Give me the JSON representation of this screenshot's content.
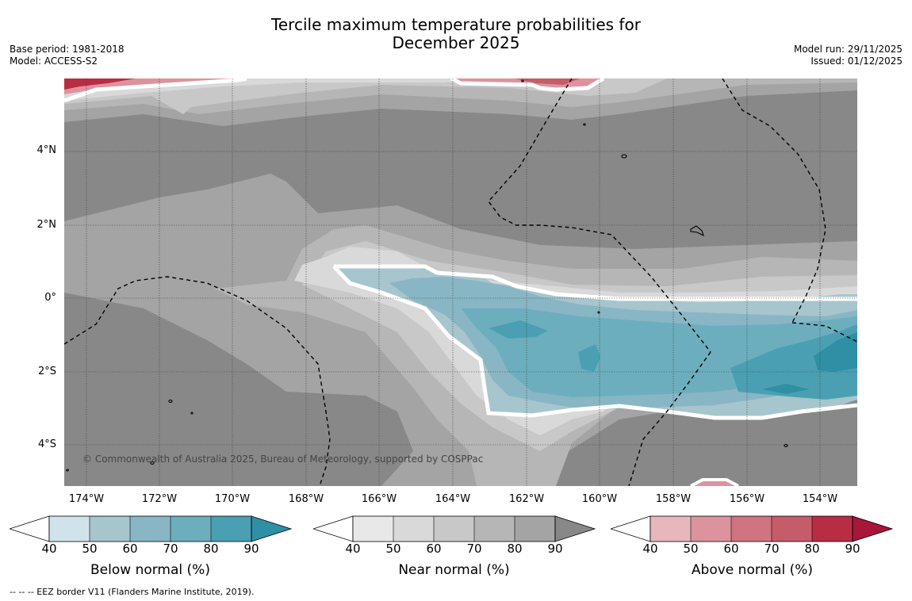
{
  "header": {
    "title_line1": "Tercile maximum temperature probabilities for",
    "title_line2": "December 2025",
    "base_period": "Base period: 1981-2018",
    "model": "Model: ACCESS-S2",
    "model_run": "Model run: 29/11/2025",
    "issued": "Issued: 01/12/2025"
  },
  "map": {
    "copyright": "© Commonwealth of Australia 2025, Bureau of Meteorology, supported by COSPPac",
    "lon_labels": [
      "174°W",
      "172°W",
      "170°W",
      "168°W",
      "166°W",
      "164°W",
      "162°W",
      "160°W",
      "158°W",
      "156°W",
      "154°W"
    ],
    "lat_labels": [
      "4°N",
      "2°N",
      "0°",
      "2°S",
      "4°S"
    ],
    "colors": {
      "near_base": "#888888",
      "near_80": "#a4a4a4",
      "near_70": "#b6b6b6",
      "near_60": "#c8c8c8",
      "near_50": "#d9d9d9",
      "below_50": "#a7c5cc",
      "below_60": "#89b6c4",
      "below_70": "#6caebd",
      "below_80": "#4aa0b2",
      "below_90": "#2f8fa4",
      "above_50": "#dc939d",
      "above_70": "#c55c6a",
      "above_80": "#b82d43"
    }
  },
  "legends": [
    {
      "title": "Below normal (%)",
      "ticks": [
        "40",
        "50",
        "60",
        "70",
        "80",
        "90"
      ],
      "colors": [
        "#ffffff",
        "#cfe4ea",
        "#a7c5cc",
        "#89b6c4",
        "#6caebd",
        "#4aa0b2",
        "#2f8fa4"
      ]
    },
    {
      "title": "Near normal (%)",
      "ticks": [
        "40",
        "50",
        "60",
        "70",
        "80",
        "90"
      ],
      "colors": [
        "#ffffff",
        "#e8e8e8",
        "#d9d9d9",
        "#c8c8c8",
        "#b6b6b6",
        "#a4a4a4",
        "#888888"
      ]
    },
    {
      "title": "Above normal (%)",
      "ticks": [
        "40",
        "50",
        "60",
        "70",
        "80",
        "90"
      ],
      "colors": [
        "#ffffff",
        "#e6b8be",
        "#dc939d",
        "#cf7480",
        "#c55c6a",
        "#b82d43",
        "#a8163a"
      ]
    }
  ],
  "footnote": "--  --  -- EEZ border V11 (Flanders Marine Institute, 2019)."
}
